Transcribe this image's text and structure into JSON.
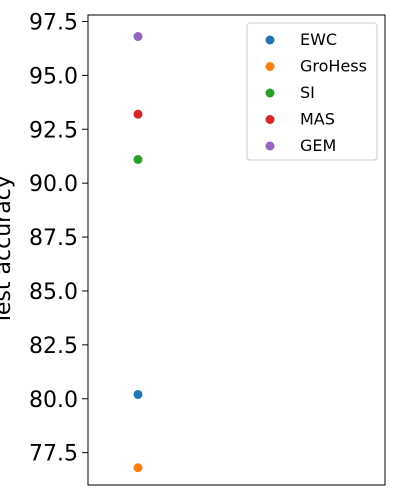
{
  "chart_data": {
    "type": "scatter",
    "ylabel": "Test accuracy",
    "ylim": [
      76.0,
      97.8
    ],
    "yticks": [
      "77.5",
      "80.0",
      "82.5",
      "85.0",
      "87.5",
      "90.0",
      "92.5",
      "95.0",
      "97.5"
    ],
    "grid": false,
    "legend_position": "top-right",
    "series": [
      {
        "name": "EWC",
        "color": "#1f77b4",
        "points": [
          {
            "x": 0,
            "y": 80.2
          }
        ]
      },
      {
        "name": "GroHess",
        "color": "#ff7f0e",
        "points": [
          {
            "x": 0,
            "y": 76.8
          }
        ]
      },
      {
        "name": "SI",
        "color": "#2ca02c",
        "points": [
          {
            "x": 0,
            "y": 91.1
          }
        ]
      },
      {
        "name": "MAS",
        "color": "#d62728",
        "points": [
          {
            "x": 0,
            "y": 93.2
          }
        ]
      },
      {
        "name": "GEM",
        "color": "#9467bd",
        "points": [
          {
            "x": 0,
            "y": 96.8
          }
        ]
      }
    ]
  }
}
